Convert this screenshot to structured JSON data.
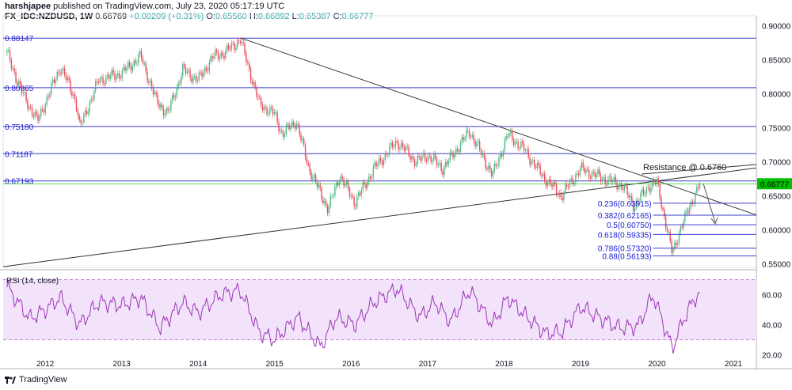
{
  "header": {
    "publisher": "harshjapee",
    "published_text": "published on TradingView.com, July 23, 2020 05:17:19 UTC",
    "symbol_line": "FX_IDC:NZDUSD, 1W",
    "last": "0.66769",
    "change": "+0.00209 (+0.31%)",
    "o_label": "O:",
    "o": "0.65560",
    "h_label": "H:",
    "h": "0.66892",
    "l_label": "L:",
    "l": "0.65387",
    "c_label": "C:",
    "c": "0.66777"
  },
  "footer": {
    "brand": "TradingView"
  },
  "colors": {
    "up": "#26a69a",
    "up_candle": "#53b987",
    "down": "#ef5350",
    "down_candle": "#eb4d5c",
    "level_line": "#3d3dcc",
    "rsi_line": "#9b36b7",
    "rsi_band": "#f3e3fa",
    "trend_line": "#333333",
    "price_tag": "#00c000",
    "fib_text": "#1a1ad6"
  },
  "chart_data": {
    "type": "candlestick",
    "y_price_range": [
      0.545,
      0.905
    ],
    "price_ticks": [
      "0.90000",
      "0.85000",
      "0.80000",
      "0.75000",
      "0.70000",
      "0.65000",
      "0.60000",
      "0.55000"
    ],
    "x_ticks": [
      "2012",
      "2013",
      "2014",
      "2015",
      "2016",
      "2017",
      "2018",
      "2019",
      "2020",
      "2021"
    ],
    "current_price_tag": "0.66777",
    "horizontal_levels": [
      {
        "label": "0.88147",
        "value": 0.8815
      },
      {
        "label": "0.80865",
        "value": 0.8087
      },
      {
        "label": "0.75180",
        "value": 0.7518
      },
      {
        "label": "0.71187",
        "value": 0.7119
      },
      {
        "label": "0.67193",
        "value": 0.6719
      }
    ],
    "fib_levels": [
      {
        "label": "0.236(0.63915)",
        "value": 0.6392
      },
      {
        "label": "0.382(0.62165)",
        "value": 0.6217
      },
      {
        "label": "0.5(0.60750)",
        "value": 0.6075
      },
      {
        "label": "0.618(0.59335)",
        "value": 0.5934
      },
      {
        "label": "0.786(0.57320)",
        "value": 0.5732
      },
      {
        "label": "0.88(0.56193)",
        "value": 0.5619
      }
    ],
    "annotation": "Resistance @ 0.6760",
    "price_path": [
      {
        "t": 2011.5,
        "p": 0.86
      },
      {
        "t": 2011.7,
        "p": 0.8
      },
      {
        "t": 2011.9,
        "p": 0.76
      },
      {
        "t": 2012.05,
        "p": 0.8
      },
      {
        "t": 2012.2,
        "p": 0.84
      },
      {
        "t": 2012.4,
        "p": 0.79
      },
      {
        "t": 2012.45,
        "p": 0.75
      },
      {
        "t": 2012.7,
        "p": 0.82
      },
      {
        "t": 2013.0,
        "p": 0.83
      },
      {
        "t": 2013.25,
        "p": 0.855
      },
      {
        "t": 2013.45,
        "p": 0.79
      },
      {
        "t": 2013.6,
        "p": 0.77
      },
      {
        "t": 2013.8,
        "p": 0.835
      },
      {
        "t": 2014.0,
        "p": 0.82
      },
      {
        "t": 2014.2,
        "p": 0.855
      },
      {
        "t": 2014.35,
        "p": 0.86
      },
      {
        "t": 2014.55,
        "p": 0.88
      },
      {
        "t": 2014.8,
        "p": 0.785
      },
      {
        "t": 2015.0,
        "p": 0.77
      },
      {
        "t": 2015.1,
        "p": 0.74
      },
      {
        "t": 2015.28,
        "p": 0.76
      },
      {
        "t": 2015.45,
        "p": 0.69
      },
      {
        "t": 2015.7,
        "p": 0.63
      },
      {
        "t": 2015.85,
        "p": 0.68
      },
      {
        "t": 2016.05,
        "p": 0.64
      },
      {
        "t": 2016.3,
        "p": 0.69
      },
      {
        "t": 2016.6,
        "p": 0.73
      },
      {
        "t": 2016.85,
        "p": 0.7
      },
      {
        "t": 2017.0,
        "p": 0.71
      },
      {
        "t": 2017.2,
        "p": 0.69
      },
      {
        "t": 2017.55,
        "p": 0.745
      },
      {
        "t": 2017.85,
        "p": 0.68
      },
      {
        "t": 2018.05,
        "p": 0.74
      },
      {
        "t": 2018.25,
        "p": 0.72
      },
      {
        "t": 2018.5,
        "p": 0.68
      },
      {
        "t": 2018.75,
        "p": 0.65
      },
      {
        "t": 2019.0,
        "p": 0.69
      },
      {
        "t": 2019.2,
        "p": 0.68
      },
      {
        "t": 2019.55,
        "p": 0.665
      },
      {
        "t": 2019.7,
        "p": 0.635
      },
      {
        "t": 2019.9,
        "p": 0.665
      },
      {
        "t": 2020.0,
        "p": 0.67
      },
      {
        "t": 2020.2,
        "p": 0.565
      },
      {
        "t": 2020.3,
        "p": 0.6
      },
      {
        "t": 2020.45,
        "p": 0.64
      },
      {
        "t": 2020.56,
        "p": 0.668
      }
    ],
    "rsi": {
      "label": "RSI (14, close)",
      "ticks": [
        "60.00",
        "40.00",
        "20.00"
      ],
      "range": [
        15,
        75
      ],
      "band": [
        30,
        70
      ],
      "path": [
        {
          "t": 2011.5,
          "v": 65
        },
        {
          "t": 2011.8,
          "v": 44
        },
        {
          "t": 2012.0,
          "v": 50
        },
        {
          "t": 2012.2,
          "v": 58
        },
        {
          "t": 2012.45,
          "v": 40
        },
        {
          "t": 2012.7,
          "v": 55
        },
        {
          "t": 2013.0,
          "v": 53
        },
        {
          "t": 2013.25,
          "v": 58
        },
        {
          "t": 2013.5,
          "v": 38
        },
        {
          "t": 2013.8,
          "v": 55
        },
        {
          "t": 2014.0,
          "v": 48
        },
        {
          "t": 2014.3,
          "v": 60
        },
        {
          "t": 2014.55,
          "v": 63
        },
        {
          "t": 2014.8,
          "v": 35
        },
        {
          "t": 2015.0,
          "v": 30
        },
        {
          "t": 2015.3,
          "v": 45
        },
        {
          "t": 2015.6,
          "v": 25
        },
        {
          "t": 2015.8,
          "v": 45
        },
        {
          "t": 2016.05,
          "v": 40
        },
        {
          "t": 2016.3,
          "v": 55
        },
        {
          "t": 2016.6,
          "v": 64
        },
        {
          "t": 2016.9,
          "v": 45
        },
        {
          "t": 2017.1,
          "v": 55
        },
        {
          "t": 2017.3,
          "v": 42
        },
        {
          "t": 2017.55,
          "v": 63
        },
        {
          "t": 2017.85,
          "v": 40
        },
        {
          "t": 2018.05,
          "v": 58
        },
        {
          "t": 2018.3,
          "v": 45
        },
        {
          "t": 2018.55,
          "v": 34
        },
        {
          "t": 2018.75,
          "v": 35
        },
        {
          "t": 2019.0,
          "v": 52
        },
        {
          "t": 2019.2,
          "v": 46
        },
        {
          "t": 2019.5,
          "v": 38
        },
        {
          "t": 2019.75,
          "v": 39
        },
        {
          "t": 2019.95,
          "v": 60
        },
        {
          "t": 2020.2,
          "v": 24
        },
        {
          "t": 2020.35,
          "v": 44
        },
        {
          "t": 2020.5,
          "v": 58
        },
        {
          "t": 2020.56,
          "v": 60
        }
      ]
    }
  }
}
